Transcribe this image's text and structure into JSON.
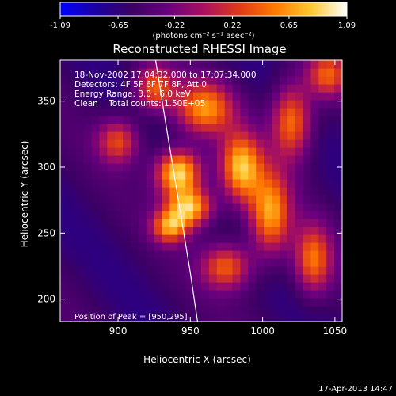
{
  "chart_data": {
    "type": "heatmap",
    "title": "Reconstructed RHESSI Image",
    "xlabel": "Heliocentric X (arcsec)",
    "ylabel": "Heliocentric Y (arcsec)",
    "xlim": [
      860,
      1055
    ],
    "ylim": [
      183,
      381
    ],
    "xticks": [
      900,
      950,
      1000,
      1050
    ],
    "yticks": [
      200,
      250,
      300,
      350
    ],
    "colorbar": {
      "min": -1.09,
      "max": 1.09,
      "ticks": [
        "-1.09",
        "-0.65",
        "-0.22",
        "0.22",
        "0.65",
        "1.09"
      ],
      "units_label": "(photons cm⁻² s⁻¹ asec⁻²)",
      "colormap": [
        "#0000ff",
        "#1c00a0",
        "#3c0064",
        "#6a007e",
        "#a81060",
        "#e03a18",
        "#ff7a00",
        "#ffc832",
        "#ffffff"
      ]
    },
    "annotations": [
      "18-Nov-2002 17:04:32.000 to 17:07:34.000",
      "Detectors: 4F 5F 6F 7F 8F, Att 0",
      "Energy Range: 3.0 - 6.0 keV",
      "Clean    Total counts: 1.50E+05"
    ],
    "peak_label": "Position of Peak = [950,295]",
    "peak": [
      950,
      295
    ],
    "peak_value": 1.09,
    "limb": [
      [
        926,
        381
      ],
      [
        932,
        340
      ],
      [
        938,
        300
      ],
      [
        944,
        260
      ],
      [
        950,
        220
      ],
      [
        955,
        183
      ]
    ],
    "lobes": [
      {
        "x": 942,
        "y": 296,
        "value": 1.0,
        "sx": 11,
        "sy": 12
      },
      {
        "x": 950,
        "y": 270,
        "value": 0.8,
        "sx": 11,
        "sy": 10
      },
      {
        "x": 936,
        "y": 255,
        "value": 0.55,
        "sx": 9,
        "sy": 9
      },
      {
        "x": 985,
        "y": 300,
        "value": 0.75,
        "sx": 10,
        "sy": 18
      },
      {
        "x": 1005,
        "y": 265,
        "value": 0.65,
        "sx": 10,
        "sy": 22
      },
      {
        "x": 1020,
        "y": 335,
        "value": 0.55,
        "sx": 10,
        "sy": 20
      },
      {
        "x": 1035,
        "y": 230,
        "value": 0.45,
        "sx": 9,
        "sy": 18
      },
      {
        "x": 960,
        "y": 345,
        "value": 0.55,
        "sx": 14,
        "sy": 14
      },
      {
        "x": 925,
        "y": 360,
        "value": 0.4,
        "sx": 10,
        "sy": 12
      },
      {
        "x": 900,
        "y": 320,
        "value": 0.3,
        "sx": 10,
        "sy": 12
      },
      {
        "x": 975,
        "y": 225,
        "value": 0.4,
        "sx": 12,
        "sy": 12
      },
      {
        "x": 1045,
        "y": 370,
        "value": 0.35,
        "sx": 10,
        "sy": 12
      }
    ],
    "grid": false
  },
  "footer": {
    "date": "17-Apr-2013 14:47"
  }
}
